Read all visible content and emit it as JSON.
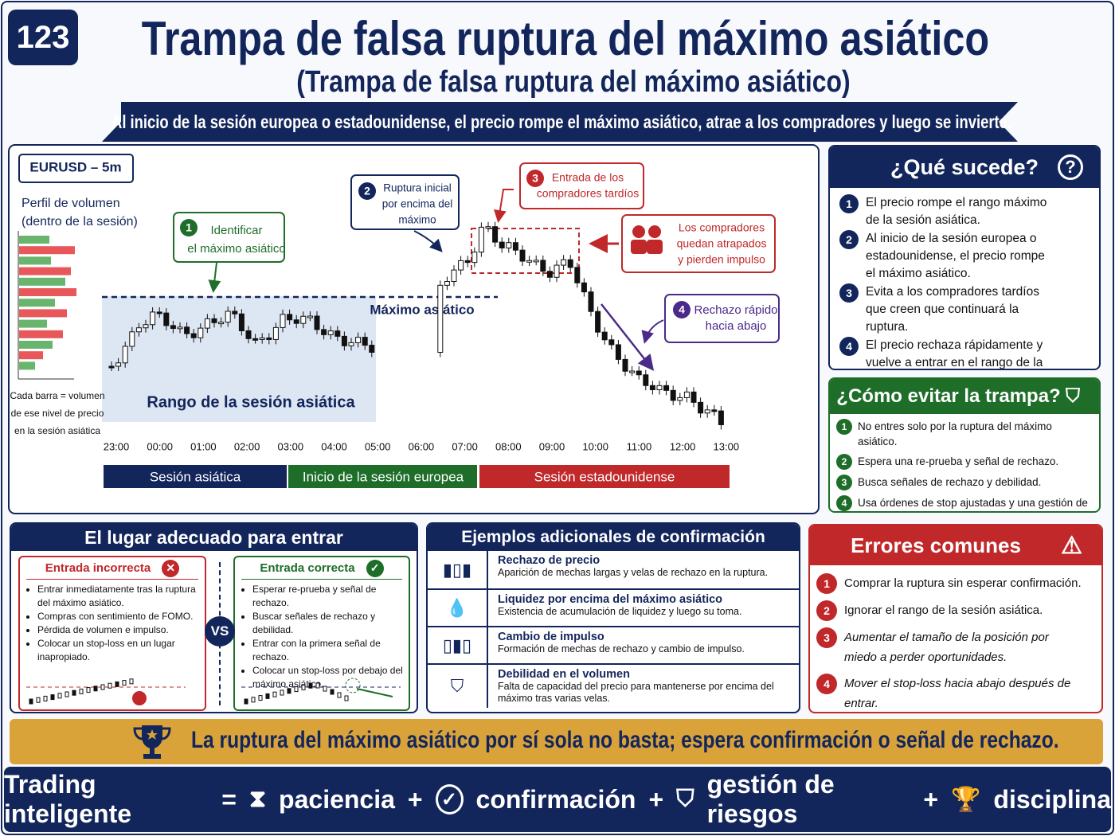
{
  "badge": "123",
  "header": {
    "title": "Trampa de falsa ruptura del máximo asiático",
    "subtitle": "(Trampa de falsa ruptura del máximo asiático)",
    "banner": "Al inicio de la sesión europea o estadounidense, el precio rompe el máximo asiático, atrae a los compradores y luego se invierte."
  },
  "chart": {
    "symbol": "EURUSD – 5m",
    "volume_title": [
      "Perfil de volumen",
      "(dentro de la sesión)"
    ],
    "volume_note": [
      "Cada barra = volumen",
      "de ese nivel de precio",
      "en la sesión asiática"
    ],
    "high_label": "Máximo asiático",
    "range_label": "Rango de la sesión asiática",
    "times": [
      "23:00",
      "00:00",
      "01:00",
      "02:00",
      "03:00",
      "04:00",
      "05:00",
      "06:00",
      "07:00",
      "08:00",
      "09:00",
      "10:00",
      "11:00",
      "12:00",
      "13:00"
    ],
    "sessions": [
      "Sesión asiática",
      "Inicio de la sesión europea",
      "Sesión estadounidense"
    ],
    "callouts": [
      {
        "number": 1,
        "lines": [
          "Identificar",
          "el máximo asiático"
        ]
      },
      {
        "number": 2,
        "lines": [
          "Ruptura inicial",
          "por encima del",
          "máximo"
        ]
      },
      {
        "number": 3,
        "lines": [
          "Entrada de los",
          "compradores tardíos"
        ]
      },
      {
        "number": 4,
        "lines": [
          "Rechazo rápido",
          "hacia abajo"
        ]
      }
    ],
    "trapped": [
      "Los compradores",
      "quedan atrapados",
      "y pierden impulso"
    ]
  },
  "what_happens": {
    "title": "¿Qué sucede?",
    "items": [
      {
        "number": 1,
        "text": "El precio rompe el rango máximo de la sesión asiática."
      },
      {
        "number": 2,
        "text": "Al inicio de la sesión europea o estadounidense, el precio rompe el máximo asiático."
      },
      {
        "number": 3,
        "text": "Evita a los compradores tardíos que creen que continuará la ruptura."
      },
      {
        "number": 4,
        "text": "El precio rechaza rápidamente y vuelve a entrar en el rango de la sesión asiática."
      }
    ]
  },
  "avoid": {
    "title": "¿Cómo evitar la trampa?",
    "items": [
      {
        "number": 1,
        "text": "No entres solo por la ruptura del máximo asiático."
      },
      {
        "number": 2,
        "text": "Espera una re-prueba y señal de rechazo."
      },
      {
        "number": 3,
        "text": "Busca señales de rechazo y debilidad."
      },
      {
        "number": 4,
        "text": "Usa órdenes de stop ajustadas y una gestión de riesgo adecuada."
      }
    ]
  },
  "entry": {
    "title": "El lugar adecuado para entrar",
    "incorrect": {
      "title": "Entrada incorrecta",
      "items": [
        "Entrar inmediatamente tras la ruptura del máximo asiático.",
        "Compras con sentimiento de FOMO.",
        "Pérdida de volumen e impulso.",
        "Colocar un stop-loss en un lugar inapropiado."
      ]
    },
    "vs": "VS",
    "correct": {
      "title": "Entrada correcta",
      "items": [
        "Esperar re-prueba y señal de rechazo.",
        "Buscar señales de rechazo y debilidad.",
        "Entrar con la primera señal de rechazo.",
        "Colocar un stop-loss por debajo del máximo asiático."
      ]
    }
  },
  "examples": {
    "title": "Ejemplos adicionales de confirmación",
    "items": [
      {
        "title": "Rechazo de precio",
        "text": "Aparición de mechas largas y velas de rechazo en la ruptura."
      },
      {
        "title": "Liquidez por encima del máximo asiático",
        "text": "Existencia de acumulación de liquidez y luego su toma."
      },
      {
        "title": "Cambio de impulso",
        "text": "Formación de mechas de rechazo y cambio de impulso."
      },
      {
        "title": "Debilidad en el volumen",
        "text": "Falta de capacidad del precio para mantenerse por encima del máximo tras varias velas."
      }
    ]
  },
  "errors": {
    "title": "Errores comunes",
    "items": [
      {
        "number": 1,
        "text": "Comprar la ruptura sin esperar confirmación."
      },
      {
        "number": 2,
        "text": "Ignorar el rango de la sesión asiática."
      },
      {
        "number": 3,
        "text": "Aumentar el tamaño de la posición por miedo a perder oportunidades."
      },
      {
        "number": 4,
        "text": "Mover el stop-loss hacia abajo después de entrar."
      }
    ]
  },
  "tip": "La ruptura del máximo asiático por sí sola no basta; espera confirmación o señal de rechazo.",
  "footer": {
    "label": "Trading inteligente",
    "equals": "=",
    "plus": "+",
    "items": [
      "paciencia",
      "confirmación",
      "gestión de riesgos",
      "disciplina"
    ]
  }
}
